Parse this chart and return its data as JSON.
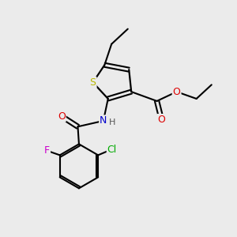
{
  "background_color": "#ebebeb",
  "atom_colors": {
    "S": "#b8b800",
    "N": "#0000cc",
    "O": "#dd0000",
    "F": "#cc00cc",
    "Cl": "#00aa00",
    "C": "#000000",
    "H": "#555555"
  },
  "bond_color": "#000000",
  "figsize": [
    3.0,
    3.0
  ],
  "dpi": 100
}
